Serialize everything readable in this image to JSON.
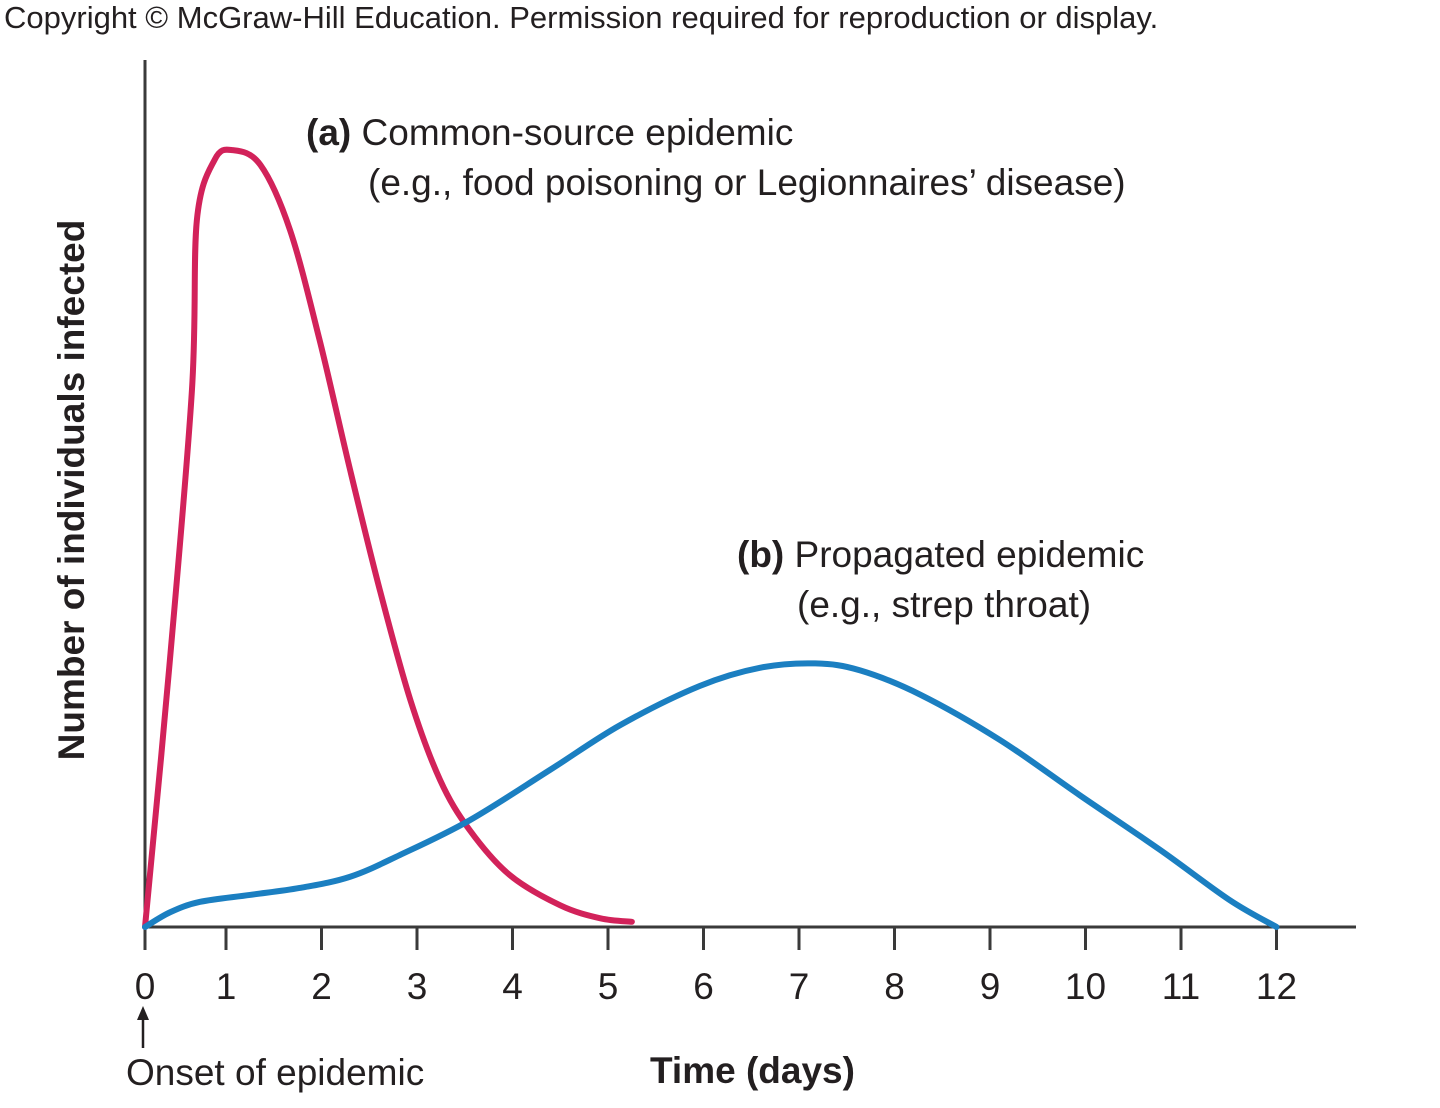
{
  "copyright": "Copyright © McGraw-Hill Education. Permission required for reproduction or display.",
  "chart_data": {
    "type": "line",
    "xlabel": "Time (days)",
    "ylabel": "Number of individuals infected",
    "xlim": [
      0,
      12
    ],
    "x_ticks": [
      0,
      1,
      2,
      3,
      4,
      5,
      6,
      7,
      8,
      9,
      10,
      11,
      12
    ],
    "y_ticks": [],
    "grid": false,
    "annotations": {
      "onset": "Onset of epidemic",
      "a": {
        "tag": "(a)",
        "title": "Common-source epidemic",
        "example": "(e.g., food poisoning or Legionnaires’ disease)"
      },
      "b": {
        "tag": "(b)",
        "title": "Propagated epidemic",
        "example": "(e.g., strep throat)"
      }
    },
    "series": [
      {
        "label_ref": "a",
        "color": "#d2225a",
        "x": [
          0,
          0.3,
          0.58,
          0.64,
          0.86,
          1.07,
          1.36,
          1.67,
          1.98,
          2.3,
          2.61,
          2.93,
          3.24,
          3.55,
          3.97,
          4.5,
          4.92,
          5.25
        ],
        "y": [
          0,
          30,
          62,
          81.5,
          88.5,
          89.6,
          87.9,
          80.4,
          67.7,
          52.7,
          38.9,
          26.2,
          17.0,
          11.2,
          6.0,
          2.5,
          1.0,
          0.6
        ]
      },
      {
        "label_ref": "b",
        "color": "#1b7fc1",
        "x": [
          0,
          0.31,
          0.68,
          1.25,
          1.77,
          2.3,
          2.82,
          3.55,
          4.39,
          5.13,
          5.96,
          6.59,
          7.17,
          7.64,
          8.27,
          9.1,
          9.94,
          10.78,
          11.51,
          12
        ],
        "y": [
          0,
          1.7,
          2.9,
          3.7,
          4.5,
          5.8,
          8.3,
          12.3,
          18.1,
          23.3,
          27.8,
          29.9,
          30.4,
          29.6,
          26.8,
          21.6,
          15.2,
          8.9,
          3.1,
          0
        ]
      }
    ]
  }
}
